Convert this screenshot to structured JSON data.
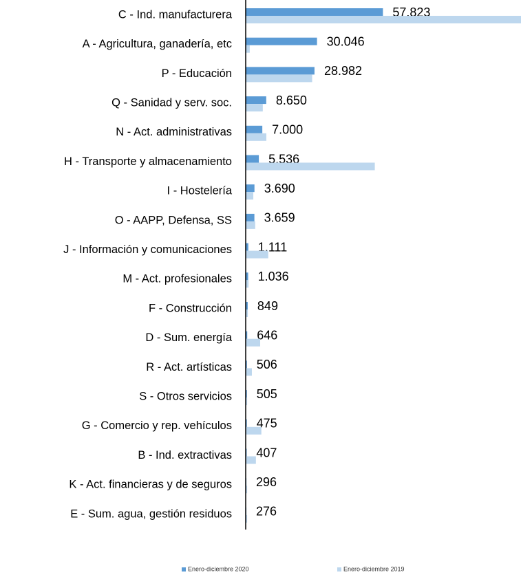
{
  "chart_data": {
    "type": "hbar",
    "categories": [
      "C - Ind. manufacturera",
      "A - Agricultura, ganadería, etc",
      "P - Educación",
      "Q - Sanidad y serv. soc.",
      "N - Act. administrativas",
      "H - Transporte y almacenamiento",
      "I - Hostelería",
      "O - AAPP, Defensa, SS",
      "J - Información y comunicaciones",
      "M - Act. profesionales",
      "F - Construcción",
      "D - Sum. energía",
      "R - Act. artísticas",
      "S - Otros servicios",
      "G - Comercio y rep. vehículos",
      "B - Ind. extractivas",
      "K - Act. financieras y de seguros",
      "E - Sum. agua, gestión residuos"
    ],
    "series": [
      {
        "name": "Enero-diciembre 2020",
        "color": "#5b9bd5",
        "values": [
          57823,
          30046,
          28982,
          8650,
          7000,
          5536,
          3690,
          3659,
          1111,
          1036,
          849,
          646,
          506,
          505,
          475,
          407,
          296,
          276
        ],
        "value_labels": [
          "57.823",
          "30.046",
          "28.982",
          "8.650",
          "7.000",
          "5.536",
          "3.690",
          "3.659",
          "1.111",
          "1.036",
          "849",
          "646",
          "506",
          "505",
          "475",
          "407",
          "296",
          "276"
        ]
      },
      {
        "name": "Enero-diciembre 2019",
        "color": "#bdd7ee",
        "values": [
          116000,
          1700,
          28000,
          7200,
          8700,
          54400,
          3200,
          4000,
          9500,
          1200,
          900,
          6100,
          2600,
          600,
          6600,
          4300,
          600,
          600
        ]
      }
    ],
    "xlim": [
      0,
      116000
    ]
  }
}
